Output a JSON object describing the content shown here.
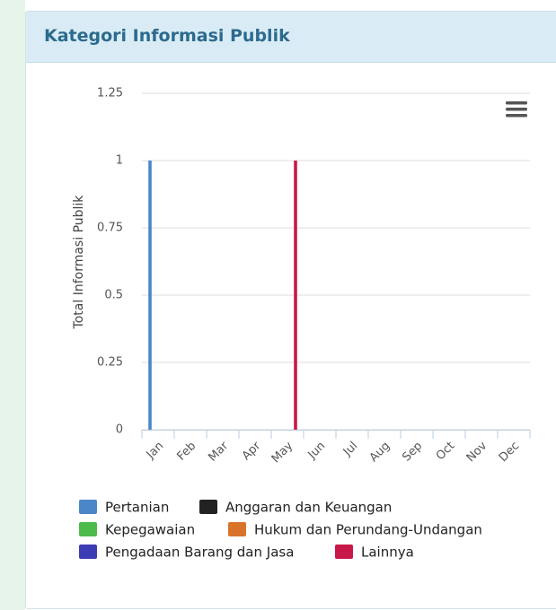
{
  "header": {
    "title": "Kategori Informasi Publik"
  },
  "chart_data": {
    "type": "bar",
    "categories": [
      "Jan",
      "Feb",
      "Mar",
      "Apr",
      "May",
      "Jun",
      "Jul",
      "Aug",
      "Sep",
      "Oct",
      "Nov",
      "Dec"
    ],
    "y_axis_label": "Total Informasi Publik",
    "ylim": [
      0,
      1.25
    ],
    "yticks": [
      0,
      0.25,
      0.5,
      0.75,
      1,
      1.25
    ],
    "grid": true,
    "series": [
      {
        "name": "Pertanian",
        "color": "#4a86c8",
        "values": [
          1,
          0,
          0,
          0,
          0,
          0,
          0,
          0,
          0,
          0,
          0,
          0
        ]
      },
      {
        "name": "Anggaran dan Keuangan",
        "color": "#222222",
        "values": [
          0,
          0,
          0,
          0,
          0,
          0,
          0,
          0,
          0,
          0,
          0,
          0
        ]
      },
      {
        "name": "Kepegawaian",
        "color": "#4cbb4c",
        "values": [
          0,
          0,
          0,
          0,
          0,
          0,
          0,
          0,
          0,
          0,
          0,
          0
        ]
      },
      {
        "name": "Hukum dan Perundang-Undangan",
        "color": "#d8732a",
        "values": [
          0,
          0,
          0,
          0,
          0,
          0,
          0,
          0,
          0,
          0,
          0,
          0
        ]
      },
      {
        "name": "Pengadaan Barang dan Jasa",
        "color": "#3c3cb4",
        "values": [
          0,
          0,
          0,
          0,
          0,
          0,
          0,
          0,
          0,
          0,
          0,
          0
        ]
      },
      {
        "name": "Lainnya",
        "color": "#c8184a",
        "values": [
          0,
          0,
          0,
          0,
          1,
          0,
          0,
          0,
          0,
          0,
          0,
          0
        ]
      }
    ]
  }
}
